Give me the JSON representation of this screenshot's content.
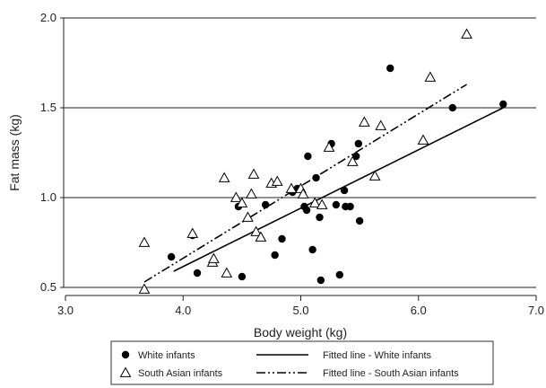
{
  "chart_data": {
    "type": "scatter",
    "title": "",
    "xlabel": "Body weight (kg)",
    "ylabel": "Fat mass (kg)",
    "xlim": [
      3.0,
      7.0
    ],
    "ylim": [
      0.5,
      2.0
    ],
    "xticks": [
      "3.0",
      "4.0",
      "5.0",
      "6.0",
      "7.0"
    ],
    "yticks": [
      "0.5",
      "1.0",
      "1.5",
      "2.0"
    ],
    "grid": "horizontal",
    "legend_position": "bottom",
    "series": [
      {
        "name": "White infants",
        "marker": "filled-circle",
        "color": "#000000",
        "points": [
          [
            3.9,
            0.67
          ],
          [
            4.08,
            0.79
          ],
          [
            4.12,
            0.58
          ],
          [
            4.47,
            0.95
          ],
          [
            4.5,
            0.56
          ],
          [
            4.7,
            0.96
          ],
          [
            4.78,
            0.68
          ],
          [
            4.84,
            0.77
          ],
          [
            4.93,
            1.03
          ],
          [
            4.97,
            1.05
          ],
          [
            5.03,
            0.95
          ],
          [
            5.05,
            0.93
          ],
          [
            5.06,
            1.23
          ],
          [
            5.1,
            0.71
          ],
          [
            5.13,
            1.11
          ],
          [
            5.16,
            0.89
          ],
          [
            5.17,
            0.54
          ],
          [
            5.26,
            1.3
          ],
          [
            5.3,
            0.96
          ],
          [
            5.33,
            0.57
          ],
          [
            5.37,
            1.04
          ],
          [
            5.38,
            0.95
          ],
          [
            5.42,
            0.95
          ],
          [
            5.47,
            1.23
          ],
          [
            5.49,
            1.3
          ],
          [
            5.5,
            0.87
          ],
          [
            5.76,
            1.72
          ],
          [
            6.29,
            1.5
          ],
          [
            6.72,
            1.52
          ]
        ]
      },
      {
        "name": "South Asian infants",
        "marker": "open-triangle",
        "color": "#000000",
        "points": [
          [
            3.67,
            0.75
          ],
          [
            3.67,
            0.49
          ],
          [
            4.08,
            0.8
          ],
          [
            4.25,
            0.64
          ],
          [
            4.26,
            0.66
          ],
          [
            4.35,
            1.11
          ],
          [
            4.37,
            0.58
          ],
          [
            4.45,
            1.0
          ],
          [
            4.5,
            0.97
          ],
          [
            4.55,
            0.89
          ],
          [
            4.58,
            1.02
          ],
          [
            4.6,
            1.13
          ],
          [
            4.62,
            0.81
          ],
          [
            4.66,
            0.78
          ],
          [
            4.75,
            1.08
          ],
          [
            4.8,
            1.09
          ],
          [
            4.92,
            1.05
          ],
          [
            5.0,
            1.05
          ],
          [
            5.02,
            1.02
          ],
          [
            5.12,
            0.97
          ],
          [
            5.18,
            0.96
          ],
          [
            5.24,
            1.28
          ],
          [
            5.44,
            1.2
          ],
          [
            5.54,
            1.42
          ],
          [
            5.63,
            1.12
          ],
          [
            5.68,
            1.4
          ],
          [
            6.04,
            1.32
          ],
          [
            6.1,
            1.67
          ],
          [
            6.41,
            1.91
          ]
        ]
      }
    ],
    "fitted_lines": [
      {
        "name": "Fitted line - White infants",
        "style": "solid",
        "color": "#000000",
        "from": [
          3.92,
          0.59
        ],
        "to": [
          6.72,
          1.5
        ]
      },
      {
        "name": "Fitted line - South Asian infants",
        "style": "dash-dot-dot",
        "color": "#000000",
        "from": [
          3.67,
          0.53
        ],
        "to": [
          6.41,
          1.63
        ]
      }
    ]
  }
}
